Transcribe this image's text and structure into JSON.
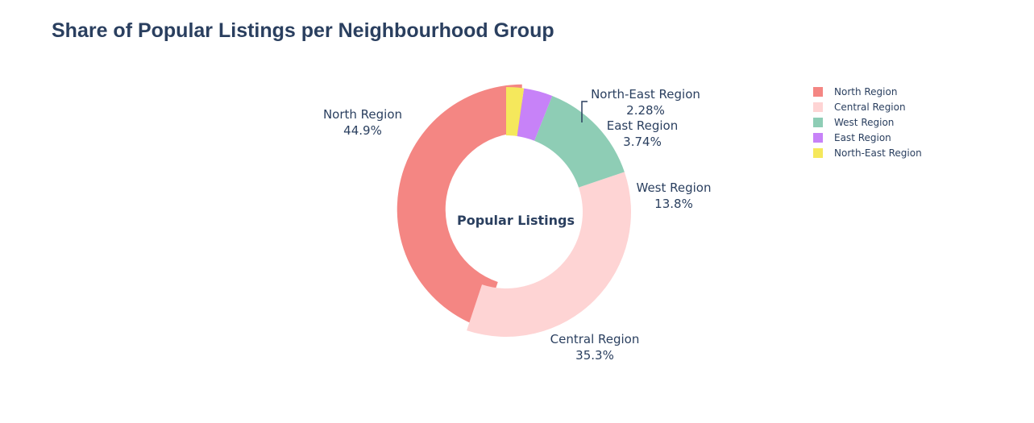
{
  "chart_data": {
    "type": "pie",
    "title": "Share of Popular Listings per Neighbourhood Group",
    "center_text": "Popular Listings",
    "hole": true,
    "pulled_slice": "North Region",
    "categories": [
      "North Region",
      "Central Region",
      "West Region",
      "East Region",
      "North-East Region"
    ],
    "values": [
      44.9,
      35.3,
      13.8,
      3.74,
      2.28
    ],
    "labels": [
      "44.9%",
      "35.3%",
      "13.8%",
      "3.74%",
      "2.28%"
    ],
    "colors": [
      "#f48683",
      "#fed4d4",
      "#8ecdb5",
      "#c782f8",
      "#f5e85c"
    ],
    "legend": [
      "North Region",
      "Central Region",
      "West Region",
      "East Region",
      "North-East Region"
    ],
    "legend_position": "top-right"
  }
}
